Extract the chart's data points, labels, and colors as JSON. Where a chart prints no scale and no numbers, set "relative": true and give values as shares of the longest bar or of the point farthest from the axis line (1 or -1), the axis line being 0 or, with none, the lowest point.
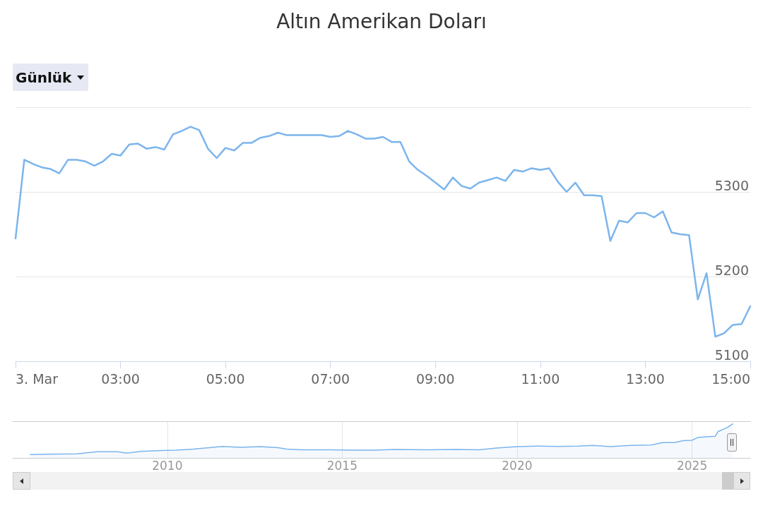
{
  "chart_data": [
    {
      "type": "line",
      "title": "Altın Amerikan Doları",
      "annotations": [
        "Günlük"
      ],
      "x": [
        1,
        1.1667,
        1.3333,
        1.5,
        1.6667,
        1.8333,
        2,
        2.1667,
        2.3333,
        2.5,
        2.6667,
        2.8333,
        3,
        3.1667,
        3.3333,
        3.5,
        3.6667,
        3.8333,
        4,
        4.1667,
        4.3333,
        4.5,
        4.6667,
        4.8333,
        5,
        5.1667,
        5.3333,
        5.5,
        5.6667,
        5.8333,
        6,
        6.1667,
        6.3333,
        6.5,
        6.6667,
        6.8333,
        7,
        7.1667,
        7.3333,
        7.5,
        7.6667,
        7.8333,
        8,
        8.1667,
        8.3333,
        8.5,
        8.6667,
        8.8333,
        9,
        9.1667,
        9.3333,
        9.5,
        9.6667,
        9.8333,
        10,
        10.1667,
        10.3333,
        10.5,
        10.6667,
        10.8333,
        11,
        11.1667,
        11.3333,
        11.5,
        11.6667,
        11.8333,
        12,
        12.1667,
        12.3333,
        12.5,
        12.6667,
        12.8333,
        13,
        13.1667,
        13.3333,
        13.5,
        13.6667,
        13.8333,
        14,
        14.1667,
        14.3333,
        14.5,
        14.6667,
        14.8333,
        15
      ],
      "series": [
        {
          "color": "#7cb5ec",
          "values": [
            5245,
            5338,
            5333,
            5329,
            5327,
            5322,
            5338,
            5338,
            5336,
            5331,
            5336,
            5345,
            5343,
            5356,
            5357,
            5351,
            5353,
            5350,
            5368,
            5372,
            5377,
            5373,
            5351,
            5340,
            5352,
            5349,
            5358,
            5358,
            5364,
            5366,
            5370,
            5367,
            5367,
            5367,
            5367,
            5367,
            5365,
            5366,
            5372,
            5368,
            5363,
            5363,
            5365,
            5359,
            5359,
            5336,
            5326,
            5319,
            5311,
            5303,
            5317,
            5307,
            5304,
            5311,
            5314,
            5317,
            5313,
            5326,
            5324,
            5328,
            5326,
            5328,
            5312,
            5300,
            5311,
            5296,
            5296,
            5295,
            5242,
            5266,
            5264,
            5275,
            5275,
            5270,
            5277,
            5252,
            5250,
            5249,
            5173,
            5204,
            5129,
            5133,
            5143,
            5144,
            5165
          ]
        }
      ],
      "xlim": [
        1,
        15
      ],
      "xticks": [
        {
          "value": 1,
          "label": "3. Mar"
        },
        {
          "value": 3,
          "label": "03:00"
        },
        {
          "value": 5,
          "label": "05:00"
        },
        {
          "value": 7,
          "label": "07:00"
        },
        {
          "value": 9,
          "label": "09:00"
        },
        {
          "value": 11,
          "label": "11:00"
        },
        {
          "value": 13,
          "label": "13:00"
        },
        {
          "value": 15,
          "label": "15:00"
        }
      ],
      "ylim": [
        5100,
        5400
      ],
      "yticks": [
        5100,
        5200,
        5300,
        {
          "value": 5400,
          "label": null
        }
      ],
      "grid": "y",
      "marker": "none"
    },
    {
      "type": "area",
      "relative": true,
      "x": [
        "2006-02",
        "2006-08",
        "2007-06",
        "2008-01",
        "2008-08",
        "2008-11",
        "2009-04",
        "2009-11",
        "2010-04",
        "2010-10",
        "2011-02",
        "2011-08",
        "2012-02",
        "2012-09",
        "2013-03",
        "2013-06",
        "2013-11",
        "2014-09",
        "2015-04",
        "2015-12",
        "2016-07",
        "2017-06",
        "2018-04",
        "2018-12",
        "2019-06",
        "2020-01",
        "2020-08",
        "2021-03",
        "2021-10",
        "2022-03",
        "2022-09",
        "2023-04",
        "2023-11",
        "2024-03",
        "2024-07",
        "2024-10",
        "2025-01",
        "2025-03",
        "2025-07",
        "2025-09",
        "2025-10",
        "2026-01",
        "2026-03"
      ],
      "series": [
        {
          "color": "#7cb5ec",
          "values": [
            0.1,
            0.11,
            0.12,
            0.18,
            0.18,
            0.14,
            0.19,
            0.22,
            0.23,
            0.26,
            0.29,
            0.34,
            0.31,
            0.33,
            0.3,
            0.26,
            0.24,
            0.24,
            0.23,
            0.23,
            0.25,
            0.24,
            0.25,
            0.24,
            0.29,
            0.33,
            0.35,
            0.34,
            0.35,
            0.37,
            0.33,
            0.37,
            0.38,
            0.45,
            0.45,
            0.51,
            0.52,
            0.6,
            0.63,
            0.64,
            0.78,
            0.89,
            1
          ]
        }
      ],
      "xlim": [
        "2005-08",
        "2026-09"
      ],
      "xticks": [
        "2010",
        "2015",
        "2020",
        "2025"
      ],
      "grid": "x"
    }
  ]
}
